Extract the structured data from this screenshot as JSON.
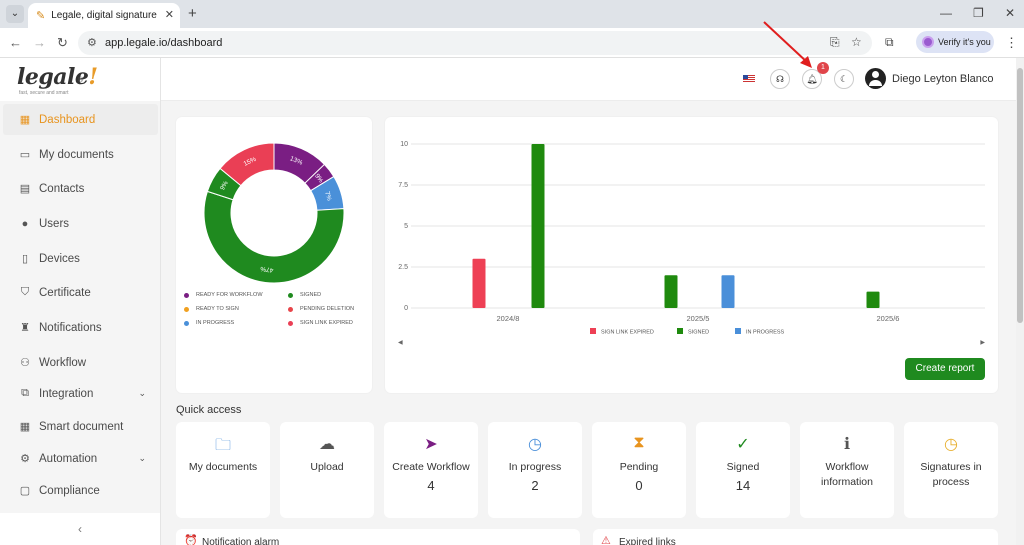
{
  "browser": {
    "tab_title": "Legale, digital signature",
    "url": "app.legale.io/dashboard",
    "verify_label": "Verify it's you",
    "new_tab_glyph": "+",
    "tab_close_glyph": "✕"
  },
  "logo": {
    "text": "legale",
    "mark": "!",
    "reg": "®",
    "tagline": "fast, secure and smart"
  },
  "sidebar": {
    "items": [
      {
        "label": "Dashboard",
        "icon": "dashboard-icon",
        "glyph": "▦"
      },
      {
        "label": "My documents",
        "icon": "folder-icon",
        "glyph": "▭"
      },
      {
        "label": "Contacts",
        "icon": "contacts-icon",
        "glyph": "▤"
      },
      {
        "label": "Users",
        "icon": "user-icon",
        "glyph": "●"
      },
      {
        "label": "Devices",
        "icon": "device-icon",
        "glyph": "▯"
      },
      {
        "label": "Certificate",
        "icon": "shield-icon",
        "glyph": "⛉"
      },
      {
        "label": "Notifications",
        "icon": "bell-icon",
        "glyph": "♜"
      },
      {
        "label": "Workflow",
        "icon": "workflow-icon",
        "glyph": "⚇"
      },
      {
        "label": "Integration",
        "icon": "integration-icon",
        "glyph": "⧉"
      },
      {
        "label": "Smart document",
        "icon": "smart-document-icon",
        "glyph": "▦"
      },
      {
        "label": "Automation",
        "icon": "gear-icon",
        "glyph": "⚙"
      },
      {
        "label": "Compliance",
        "icon": "chat-icon",
        "glyph": "▢"
      }
    ],
    "collapse_glyph": "‹"
  },
  "topbar": {
    "user_name": "Diego Leyton Blanco",
    "notification_count": "1"
  },
  "donut": {
    "labels": [
      "13%",
      "9%",
      "7%",
      "47%",
      "9%",
      "15%"
    ],
    "legend": [
      {
        "label": "READY FOR WORKFLOW",
        "color": "#7a1e83"
      },
      {
        "label": "SIGNED",
        "color": "#1f8a1f"
      },
      {
        "label": "READY TO SIGN",
        "color": "#f0a020"
      },
      {
        "label": "PENDING DELETION",
        "color": "#e8454a"
      },
      {
        "label": "IN PROGRESS",
        "color": "#4a90d9"
      },
      {
        "label": "SIGN LINK EXPIRED",
        "color": "#ea3f55"
      }
    ]
  },
  "chart_data": {
    "type": "bar",
    "categories": [
      "2024/8",
      "2025/5",
      "2025/6"
    ],
    "series": [
      {
        "name": "SIGN LINK EXPIRED",
        "color": "#ee4055",
        "values": [
          3,
          0,
          0
        ]
      },
      {
        "name": "SIGNED",
        "color": "#1f8a0e",
        "values": [
          10,
          2,
          1
        ]
      },
      {
        "name": "IN PROGRESS",
        "color": "#4a8fd9",
        "values": [
          0,
          2,
          0
        ]
      }
    ],
    "yticks": [
      "0",
      "2.5",
      "5",
      "7.5",
      "10"
    ],
    "ylim": [
      0,
      10
    ],
    "grid": true,
    "legend_position": "bottom"
  },
  "create_report_label": "Create report",
  "quick_access": {
    "title": "Quick access",
    "items": [
      {
        "label": "My documents",
        "count": "",
        "icon": "folder-icon",
        "glyph": "🗀",
        "color": "#4a8fd9"
      },
      {
        "label": "Upload",
        "count": "",
        "icon": "upload-icon",
        "glyph": "☁",
        "color": "#555555"
      },
      {
        "label": "Create Workflow",
        "count": "4",
        "icon": "send-icon",
        "glyph": "➤",
        "color": "#7a1e83"
      },
      {
        "label": "In progress",
        "count": "2",
        "icon": "clock-icon",
        "glyph": "◷",
        "color": "#4a8fd9"
      },
      {
        "label": "Pending",
        "count": "0",
        "icon": "hourglass-icon",
        "glyph": "⧗",
        "color": "#e8941f"
      },
      {
        "label": "Signed",
        "count": "14",
        "icon": "check-circle-icon",
        "glyph": "✓",
        "color": "#1f8a1f"
      },
      {
        "label": "Workflow information",
        "count": "",
        "icon": "info-icon",
        "glyph": "ℹ",
        "color": "#555555"
      },
      {
        "label": "Signatures in process",
        "count": "",
        "icon": "clock-icon",
        "glyph": "◷",
        "color": "#e8b030"
      }
    ]
  },
  "bottom_cards": [
    {
      "label": "Notification alarm",
      "icon": "alarm-icon",
      "glyph": "⏰",
      "color": "#1f8a1f"
    },
    {
      "label": "Expired links",
      "icon": "warning-icon",
      "glyph": "⚠",
      "color": "#e0454a"
    }
  ]
}
